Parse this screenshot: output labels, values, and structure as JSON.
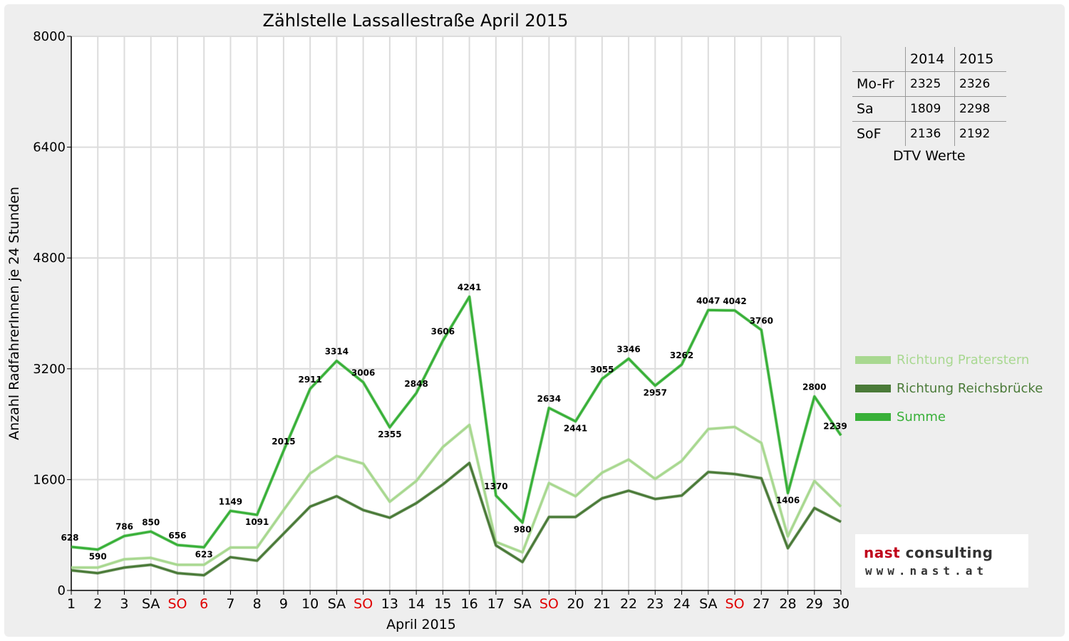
{
  "chart_data": {
    "type": "line",
    "title": "Zählstelle Lassallestraße April 2015",
    "xlabel": "April 2015",
    "ylabel": "Anzahl RadfahrerInnen je 24 Stunden",
    "ylim": [
      0,
      8000
    ],
    "y_ticks": [
      "0",
      "1600",
      "3200",
      "4800",
      "6400",
      "8000"
    ],
    "grid": true,
    "legend_position": "right",
    "categories": [
      "1",
      "2",
      "3",
      "SA",
      "SO",
      "6",
      "7",
      "8",
      "9",
      "10",
      "SA",
      "SO",
      "13",
      "14",
      "15",
      "16",
      "17",
      "SA",
      "SO",
      "20",
      "21",
      "22",
      "23",
      "24",
      "SA",
      "SO",
      "27",
      "28",
      "29",
      "30"
    ],
    "red_categories": [
      4,
      5,
      11,
      18,
      25
    ],
    "series": [
      {
        "name": "Richtung Praterstern",
        "color": "#a8d890",
        "values": [
          330,
          330,
          450,
          470,
          370,
          370,
          620,
          620,
          1160,
          1690,
          1940,
          1830,
          1280,
          1580,
          2070,
          2390,
          700,
          550,
          1550,
          1360,
          1700,
          1890,
          1610,
          1870,
          2330,
          2360,
          2130,
          780,
          1580,
          1210
        ]
      },
      {
        "name": "Richtung Reichsbrücke",
        "color": "#4a7a38",
        "values": [
          290,
          250,
          330,
          370,
          250,
          220,
          480,
          430,
          820,
          1210,
          1360,
          1160,
          1050,
          1260,
          1530,
          1840,
          650,
          410,
          1060,
          1060,
          1330,
          1440,
          1320,
          1370,
          1710,
          1680,
          1620,
          610,
          1190,
          990
        ]
      },
      {
        "name": "Summe",
        "color": "#38b038",
        "values": [
          628,
          590,
          786,
          850,
          656,
          623,
          1149,
          1091,
          2015,
          2911,
          3314,
          3006,
          2355,
          2848,
          3606,
          4241,
          1370,
          980,
          2634,
          2441,
          3055,
          3346,
          2957,
          3262,
          4047,
          4042,
          3760,
          1406,
          2800,
          2239
        ]
      }
    ],
    "data_labels": [
      "628",
      "590",
      "786",
      "850",
      "656",
      "623",
      "1149",
      "1091",
      "2015",
      "2911",
      "3314",
      "3006",
      "2355",
      "2848",
      "3606",
      "4241",
      "1370",
      "980",
      "2634",
      "2441",
      "3055",
      "3346",
      "2957",
      "3262",
      "4047",
      "4042",
      "3760",
      "1406",
      "2800",
      "2239"
    ]
  },
  "dtv_table": {
    "headers": [
      "",
      "2014",
      "2015"
    ],
    "rows": [
      [
        "Mo-Fr",
        "2325",
        "2326"
      ],
      [
        "Sa",
        "1809",
        "2298"
      ],
      [
        "SoF",
        "2136",
        "2192"
      ]
    ],
    "caption": "DTV Werte"
  },
  "logo": {
    "name_part1": "nast",
    "name_part2": " consulting",
    "url": "www.nast.at"
  }
}
